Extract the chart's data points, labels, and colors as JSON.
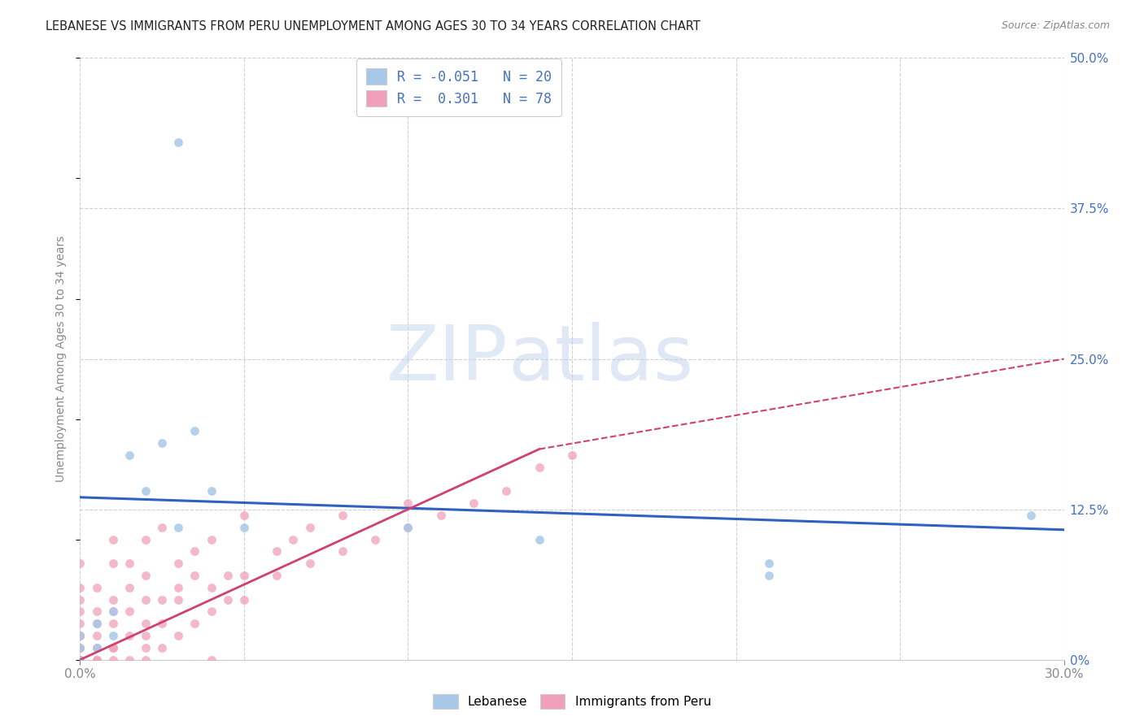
{
  "title": "LEBANESE VS IMMIGRANTS FROM PERU UNEMPLOYMENT AMONG AGES 30 TO 34 YEARS CORRELATION CHART",
  "source": "Source: ZipAtlas.com",
  "ylabel": "Unemployment Among Ages 30 to 34 years",
  "xlim": [
    0.0,
    0.3
  ],
  "ylim": [
    0.0,
    0.5
  ],
  "xticks": [
    0.0,
    0.05,
    0.1,
    0.15,
    0.2,
    0.25,
    0.3
  ],
  "yticks": [
    0.0,
    0.125,
    0.25,
    0.375,
    0.5
  ],
  "ytick_labels_right": [
    "0%",
    "12.5%",
    "25.0%",
    "37.5%",
    "50.0%"
  ],
  "legend_labels": [
    "Lebanese",
    "Immigrants from Peru"
  ],
  "r_lebanese": -0.051,
  "n_lebanese": 20,
  "r_peru": 0.301,
  "n_peru": 78,
  "color_lebanese": "#a8c8e8",
  "color_peru": "#f0a0b8",
  "line_color_lebanese": "#3060c0",
  "line_color_peru": "#d04070",
  "lebanese_x": [
    0.0,
    0.0,
    0.0,
    0.005,
    0.005,
    0.01,
    0.01,
    0.015,
    0.02,
    0.025,
    0.03,
    0.03,
    0.035,
    0.04,
    0.05,
    0.1,
    0.14,
    0.21,
    0.21,
    0.29
  ],
  "lebanese_y": [
    0.0,
    0.01,
    0.02,
    0.01,
    0.03,
    0.02,
    0.04,
    0.17,
    0.14,
    0.18,
    0.43,
    0.11,
    0.19,
    0.14,
    0.11,
    0.11,
    0.1,
    0.07,
    0.08,
    0.12
  ],
  "peru_x": [
    0.0,
    0.0,
    0.0,
    0.0,
    0.0,
    0.0,
    0.0,
    0.0,
    0.0,
    0.0,
    0.0,
    0.0,
    0.0,
    0.0,
    0.0,
    0.0,
    0.005,
    0.005,
    0.005,
    0.005,
    0.005,
    0.005,
    0.005,
    0.01,
    0.01,
    0.01,
    0.01,
    0.01,
    0.01,
    0.01,
    0.01,
    0.015,
    0.015,
    0.015,
    0.015,
    0.015,
    0.02,
    0.02,
    0.02,
    0.02,
    0.02,
    0.02,
    0.02,
    0.025,
    0.025,
    0.025,
    0.025,
    0.03,
    0.03,
    0.03,
    0.03,
    0.035,
    0.035,
    0.035,
    0.04,
    0.04,
    0.04,
    0.04,
    0.045,
    0.045,
    0.05,
    0.05,
    0.05,
    0.06,
    0.06,
    0.065,
    0.07,
    0.07,
    0.08,
    0.08,
    0.09,
    0.1,
    0.1,
    0.11,
    0.12,
    0.13,
    0.14,
    0.15
  ],
  "peru_y": [
    0.0,
    0.0,
    0.0,
    0.0,
    0.0,
    0.0,
    0.01,
    0.01,
    0.02,
    0.02,
    0.02,
    0.03,
    0.04,
    0.05,
    0.06,
    0.08,
    0.0,
    0.0,
    0.01,
    0.02,
    0.03,
    0.04,
    0.06,
    0.0,
    0.01,
    0.01,
    0.03,
    0.04,
    0.05,
    0.08,
    0.1,
    0.0,
    0.02,
    0.04,
    0.06,
    0.08,
    0.0,
    0.01,
    0.02,
    0.03,
    0.05,
    0.07,
    0.1,
    0.01,
    0.03,
    0.05,
    0.11,
    0.02,
    0.05,
    0.06,
    0.08,
    0.03,
    0.07,
    0.09,
    0.0,
    0.04,
    0.06,
    0.1,
    0.05,
    0.07,
    0.05,
    0.07,
    0.12,
    0.07,
    0.09,
    0.1,
    0.08,
    0.11,
    0.09,
    0.12,
    0.1,
    0.11,
    0.13,
    0.12,
    0.13,
    0.14,
    0.16,
    0.17
  ],
  "leb_line_x0": 0.0,
  "leb_line_y0": 0.135,
  "leb_line_x1": 0.3,
  "leb_line_y1": 0.108,
  "peru_line_solid_x0": 0.0,
  "peru_line_solid_y0": 0.0,
  "peru_line_solid_x1": 0.14,
  "peru_line_solid_y1": 0.175,
  "peru_line_dash_x0": 0.14,
  "peru_line_dash_y0": 0.175,
  "peru_line_dash_x1": 0.3,
  "peru_line_dash_y1": 0.25
}
